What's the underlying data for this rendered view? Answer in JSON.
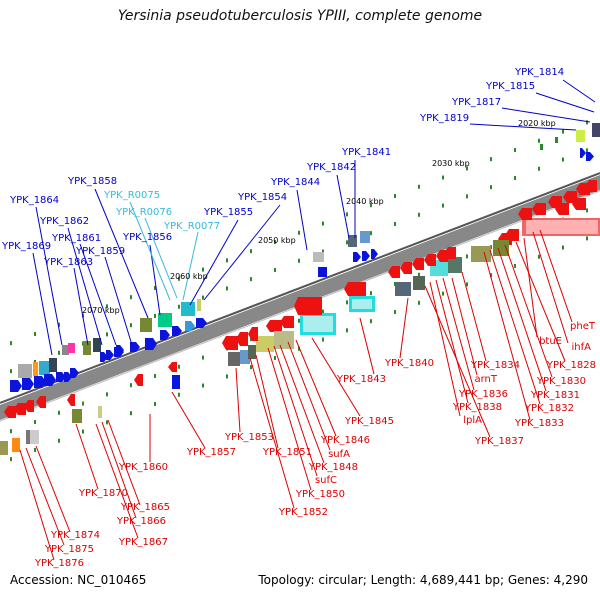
{
  "title": "Yersinia pseudotuberculosis YPIII, complete genome",
  "accession": "Accession: NC_010465",
  "topology": "Topology: circular; Length: 4,689,441 bp; Genes: 4,290",
  "colors": {
    "forward_label": "#0000cc",
    "rna_label": "#33bbdd",
    "reverse_label": "#dd0000",
    "backbone": "#888888"
  },
  "ticks": [
    {
      "text": "2020 kbp"
    },
    {
      "text": "2030 kbp"
    },
    {
      "text": "2040 kbp"
    },
    {
      "text": "2050 kbp"
    },
    {
      "text": "2060 kbp"
    },
    {
      "text": "2070 kbp"
    }
  ],
  "forward_genes": [
    "YPK_1814",
    "YPK_1815",
    "YPK_1817",
    "YPK_1819",
    "YPK_1841",
    "YPK_1842",
    "YPK_1844",
    "YPK_1854",
    "YPK_1855",
    "YPK_1856",
    "YPK_1858",
    "YPK_1859",
    "YPK_1861",
    "YPK_1862",
    "YPK_1863",
    "YPK_1864",
    "YPK_1869"
  ],
  "rna_genes": [
    "YPK_R0075",
    "YPK_R0076",
    "YPK_R0077"
  ],
  "reverse_genes": [
    "pheT",
    "ihfA",
    "btuE",
    "YPK_1828",
    "YPK_1830",
    "YPK_1831",
    "YPK_1832",
    "YPK_1833",
    "YPK_1834",
    "arnT",
    "YPK_1836",
    "YPK_1838",
    "lplA",
    "YPK_1837",
    "YPK_1840",
    "YPK_1843",
    "YPK_1845",
    "YPK_1846",
    "sufA",
    "YPK_1848",
    "sufC",
    "YPK_1850",
    "YPK_1851",
    "YPK_1852",
    "YPK_1853",
    "YPK_1857",
    "YPK_1860",
    "YPK_1865",
    "YPK_1866",
    "YPK_1867",
    "YPK_1870",
    "YPK_1874",
    "YPK_1875",
    "YPK_1876"
  ]
}
